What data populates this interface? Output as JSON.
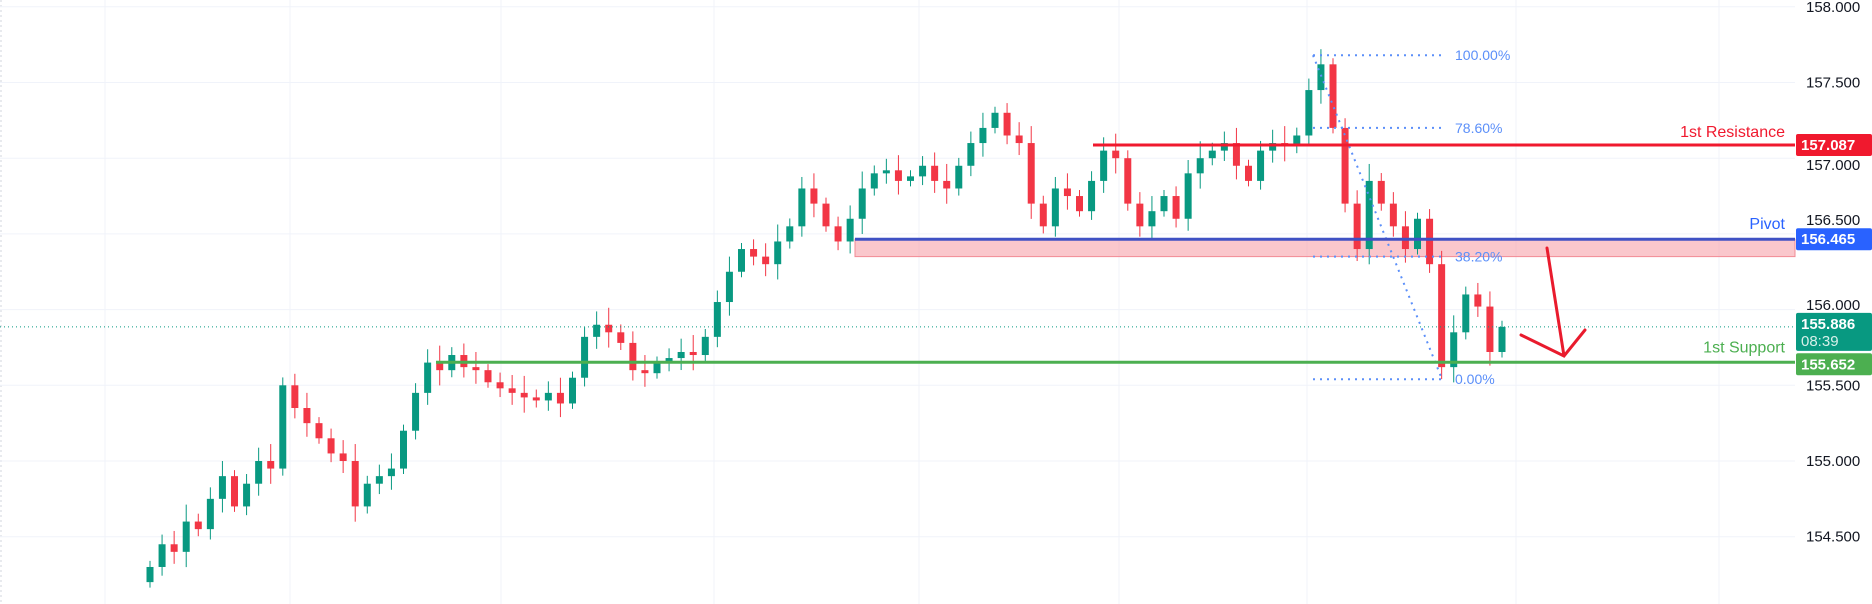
{
  "chart_data": {
    "type": "candlestick",
    "y_axis": {
      "min": 154.2,
      "max": 158.0,
      "ticks": [
        "158.000",
        "157.500",
        "157.000",
        "156.500",
        "156.000",
        "155.500",
        "155.000",
        "154.500"
      ]
    },
    "grid": true,
    "closes": [
      154.3,
      154.45,
      154.4,
      154.6,
      154.55,
      154.75,
      154.9,
      154.7,
      154.85,
      155.0,
      154.95,
      155.5,
      155.35,
      155.25,
      155.15,
      155.05,
      155.0,
      154.7,
      154.85,
      154.9,
      154.95,
      155.2,
      155.45,
      155.65,
      155.6,
      155.7,
      155.62,
      155.6,
      155.52,
      155.48,
      155.45,
      155.42,
      155.4,
      155.45,
      155.38,
      155.55,
      155.82,
      155.9,
      155.85,
      155.78,
      155.6,
      155.58,
      155.65,
      155.68,
      155.72,
      155.7,
      155.82,
      156.05,
      156.25,
      156.4,
      156.35,
      156.3,
      156.45,
      156.55,
      156.8,
      156.7,
      156.55,
      156.45,
      156.6,
      156.8,
      156.9,
      156.92,
      156.85,
      156.88,
      156.95,
      156.85,
      156.8,
      156.95,
      157.1,
      157.2,
      157.3,
      157.15,
      157.1,
      156.7,
      156.55,
      156.8,
      156.75,
      156.65,
      156.85,
      157.05,
      157.0,
      156.7,
      156.55,
      156.65,
      156.75,
      156.6,
      156.9,
      157.0,
      157.05,
      157.1,
      156.95,
      156.85,
      157.05,
      157.1,
      157.08,
      157.15,
      157.45,
      157.62,
      157.2,
      156.7,
      156.4,
      156.85,
      156.7,
      156.55,
      156.4,
      156.6,
      156.3,
      155.62,
      155.85,
      156.1,
      156.02,
      155.72,
      155.886
    ],
    "levels": {
      "resistance": {
        "label": "1st Resistance",
        "value": 157.087,
        "tag": "157.087",
        "color": "#f0192e"
      },
      "pivot": {
        "label": "Pivot",
        "value": 156.465,
        "tag": "156.465",
        "color": "#2962ff",
        "zone_low": 156.35
      },
      "support": {
        "label": "1st Support",
        "value": 155.652,
        "tag": "155.652",
        "color": "#4caf50"
      }
    },
    "current_price": {
      "value": 155.886,
      "tag": "155.886",
      "countdown": "08:39",
      "color": "#089981"
    },
    "fibonacci": [
      {
        "label": "100.00%",
        "value": 157.68
      },
      {
        "label": "78.60%",
        "value": 157.2
      },
      {
        "label": "38.20%",
        "value": 156.35
      },
      {
        "label": "0.00%",
        "value": 155.54
      }
    ],
    "colors": {
      "up": "#089981",
      "down": "#f23645",
      "fib": "#5b8ff9",
      "arrow": "#e91b2d"
    },
    "annotation": "bearish-arrow-down"
  }
}
